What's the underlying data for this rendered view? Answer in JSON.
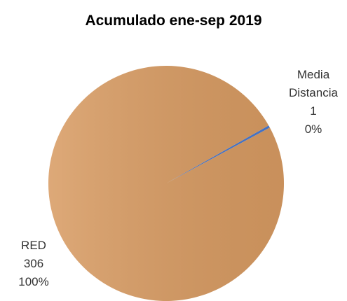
{
  "chart_data": {
    "type": "pie",
    "title": "Acumulado ene-sep 2019",
    "categories": [
      "Media Distancia",
      "RED"
    ],
    "values": [
      1,
      306
    ],
    "percent_labels": [
      "0%",
      "100%"
    ],
    "colors": [
      "#4472c4",
      "#d89b62"
    ]
  }
}
